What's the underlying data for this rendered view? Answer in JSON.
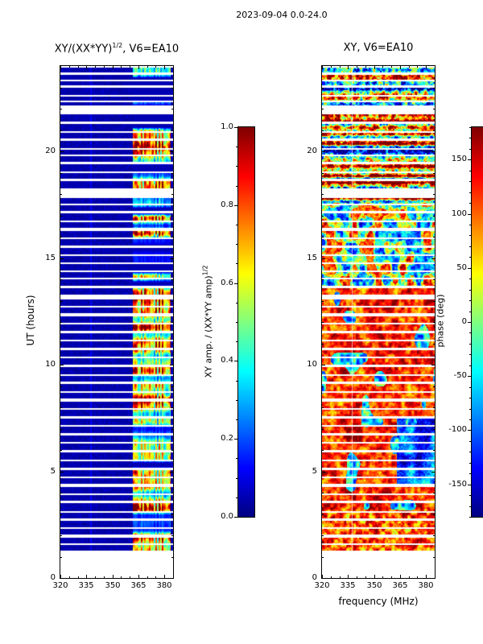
{
  "figure": {
    "suptitle": "2023-09-04 0.0-24.0",
    "xlabel": "frequency (MHz)",
    "ylabel": "UT (hours)",
    "background": "#ffffff"
  },
  "chart_data": {
    "type": "heatmap",
    "panels": [
      {
        "title_base": "XY/(XX*YY)",
        "title_sup": "1/2",
        "title_rest": ", V6=EA10",
        "xlim": [
          320,
          385
        ],
        "ylim": [
          0,
          24
        ],
        "xticks": [
          "320",
          "335",
          "350",
          "365",
          "380"
        ],
        "yticks": [
          "0",
          "5",
          "10",
          "15",
          "20"
        ],
        "minor_x_step_mhz": 5,
        "minor_y_step_hours": 1,
        "colormap": "jet",
        "value_range": [
          0,
          1
        ],
        "description": "Normalized cross-hand amplitude dynamic spectrum; near zero (dark blue) at most frequencies, strong striped signal only in the 362-383 MHz band, interrupted by horizontal white data gaps."
      },
      {
        "title": "XY, V6=EA10",
        "xlim": [
          320,
          385
        ],
        "ylim": [
          0,
          24
        ],
        "xticks": [
          "320",
          "335",
          "350",
          "365",
          "380"
        ],
        "yticks": [
          "0",
          "5",
          "10",
          "15",
          "20"
        ],
        "minor_x_step_mhz": 5,
        "minor_y_step_hours": 1,
        "colormap": "jet",
        "value_range": [
          -180,
          180
        ],
        "description": "Cross-hand phase dynamic spectrum; largely coherent red/orange phase (~+100 to +170 deg) from UT 3-14, a blue/cyan block (~-120 deg) at UT 4.5-7.5 above 363 MHz, patchy green/cyan/red mix UT 14-17.5, and scrambled multicolour rows UT 17.5-24, with the same white data gaps."
      }
    ],
    "colorbars": [
      {
        "label_base": "XY amp. / (XX*YY amp)",
        "label_sup": "1/2",
        "range": [
          0,
          1
        ],
        "ticks": [
          "0.0",
          "0.2",
          "0.4",
          "0.6",
          "0.8",
          "1.0"
        ],
        "minor_step": 0.05,
        "colormap": "jet"
      },
      {
        "label": "phase (deg)",
        "range": [
          -180,
          180
        ],
        "ticks": [
          "150",
          "100",
          "50",
          "0",
          "-50",
          "-100",
          "-150"
        ],
        "minor_step": 10,
        "colormap": "jet"
      }
    ],
    "time_gaps_ut": [
      [
        0,
        1.28
      ],
      [
        1.55,
        1.62
      ],
      [
        1.9,
        2.02
      ],
      [
        2.3,
        2.37
      ],
      [
        2.68,
        2.78
      ],
      [
        3.08,
        3.14
      ],
      [
        3.5,
        3.62
      ],
      [
        3.9,
        3.96
      ],
      [
        4.28,
        4.4
      ],
      [
        4.7,
        4.76
      ],
      [
        5.06,
        5.18
      ],
      [
        5.5,
        5.56
      ],
      [
        5.9,
        6.0
      ],
      [
        6.3,
        6.36
      ],
      [
        6.68,
        6.8
      ],
      [
        7.1,
        7.16
      ],
      [
        7.48,
        7.6
      ],
      [
        7.9,
        7.96
      ],
      [
        8.28,
        8.4
      ],
      [
        8.7,
        8.76
      ],
      [
        9.08,
        9.2
      ],
      [
        9.5,
        9.56
      ],
      [
        9.88,
        10.0
      ],
      [
        10.3,
        10.36
      ],
      [
        10.68,
        10.8
      ],
      [
        11.1,
        11.16
      ],
      [
        11.48,
        11.6
      ],
      [
        11.9,
        11.96
      ],
      [
        12.28,
        12.4
      ],
      [
        12.7,
        12.76
      ],
      [
        13.05,
        13.3
      ],
      [
        13.6,
        13.7
      ],
      [
        14.0,
        14.06
      ],
      [
        14.34,
        14.42
      ],
      [
        14.7,
        14.8
      ],
      [
        15.1,
        15.16
      ],
      [
        15.48,
        15.6
      ],
      [
        15.9,
        15.96
      ],
      [
        16.28,
        16.4
      ],
      [
        16.7,
        16.76
      ],
      [
        17.08,
        17.2
      ],
      [
        17.5,
        17.56
      ],
      [
        17.82,
        18.25
      ],
      [
        18.6,
        18.7
      ],
      [
        19.0,
        19.06
      ],
      [
        19.38,
        19.5
      ],
      [
        19.8,
        19.86
      ],
      [
        20.1,
        20.16
      ],
      [
        20.48,
        20.6
      ],
      [
        20.9,
        20.96
      ],
      [
        21.3,
        21.4
      ],
      [
        21.75,
        22.15
      ],
      [
        22.3,
        22.38
      ],
      [
        22.6,
        22.66
      ],
      [
        22.98,
        23.1
      ],
      [
        23.3,
        23.36
      ],
      [
        23.6,
        23.7
      ],
      [
        23.92,
        24.0
      ]
    ],
    "features": {
      "signal_band_mhz": [
        362,
        383.5
      ],
      "narrowband_line_mhz": 337.5,
      "pale_line_right_mhz": 337.3,
      "phase_regions": [
        {
          "ut": [
            0,
            1.2
          ],
          "freq": [
            320,
            385
          ],
          "character": "random",
          "phase_deg": 0
        },
        {
          "ut": [
            1.2,
            3.2
          ],
          "freq": [
            320,
            385
          ],
          "character": "coherent",
          "phase_deg": 105
        },
        {
          "ut": [
            3.2,
            13.6
          ],
          "freq": [
            320,
            385
          ],
          "character": "coherent",
          "phase_deg": 120
        },
        {
          "ut": [
            4.3,
            7.6
          ],
          "freq": [
            363,
            385
          ],
          "character": "coherent",
          "phase_deg": -115
        },
        {
          "ut": [
            13.6,
            17.5
          ],
          "freq": [
            320,
            385
          ],
          "character": "patchy",
          "phase_deg": 0
        },
        {
          "ut": [
            17.5,
            24
          ],
          "freq": [
            320,
            385
          ],
          "character": "scrambled",
          "phase_deg": 0
        }
      ]
    }
  }
}
